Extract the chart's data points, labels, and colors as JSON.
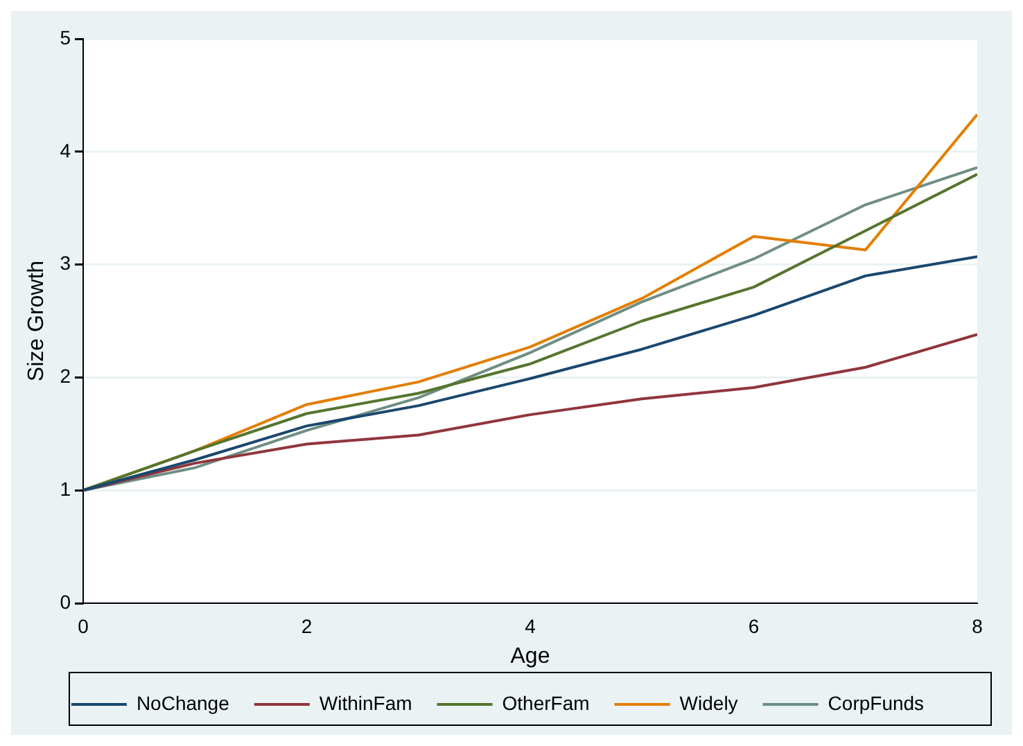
{
  "chart_data": {
    "type": "line",
    "xlabel": "Age",
    "ylabel": "Size Growth",
    "x": [
      0,
      1,
      2,
      3,
      4,
      5,
      6,
      7,
      8
    ],
    "xlim": [
      0,
      8
    ],
    "xticks": [
      0,
      2,
      4,
      6,
      8
    ],
    "ylim": [
      0,
      5
    ],
    "yticks": [
      0,
      1,
      2,
      3,
      4,
      5
    ],
    "grid": "y",
    "legend": "bottom",
    "marker": "none",
    "line_style": "solid",
    "series": [
      {
        "name": "NoChange",
        "color": "#1a476f",
        "values": [
          1,
          1.27,
          1.57,
          1.75,
          1.99,
          2.25,
          2.55,
          2.9,
          3.07
        ]
      },
      {
        "name": "WithinFam",
        "color": "#90353b",
        "values": [
          1,
          1.24,
          1.41,
          1.49,
          1.67,
          1.81,
          1.91,
          2.09,
          2.38
        ]
      },
      {
        "name": "OtherFam",
        "color": "#55752f",
        "values": [
          1,
          1.35,
          1.68,
          1.86,
          2.12,
          2.5,
          2.8,
          3.3,
          3.8
        ]
      },
      {
        "name": "Widely",
        "color": "#e37e00",
        "values": [
          1,
          1.35,
          1.76,
          1.96,
          2.27,
          2.7,
          3.25,
          3.13,
          4.33
        ]
      },
      {
        "name": "CorpFunds",
        "color": "#6e8e84",
        "values": [
          1,
          1.2,
          1.53,
          1.82,
          2.22,
          2.67,
          3.05,
          3.53,
          3.86
        ]
      }
    ]
  }
}
